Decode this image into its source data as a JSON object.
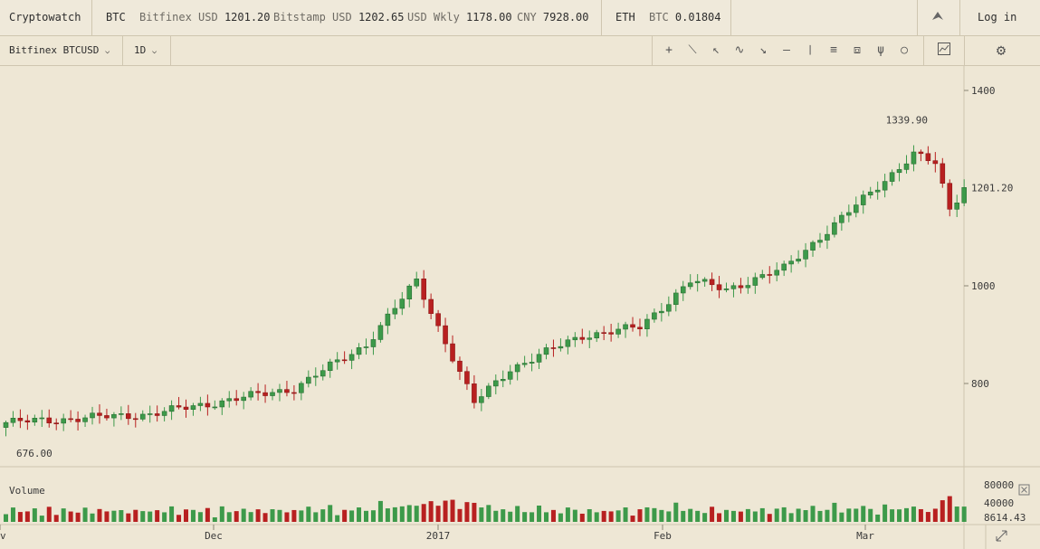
{
  "app": {
    "title": "Cryptowatch",
    "login": "Log in"
  },
  "ticker": {
    "btc_label": "BTC",
    "btc_items": [
      {
        "name": "Bitfinex USD",
        "value": "1201.20"
      },
      {
        "name": "Bitstamp USD",
        "value": "1202.65"
      },
      {
        "name": "USD Wkly",
        "value": "1178.00"
      },
      {
        "name": "CNY",
        "value": "7928.00"
      }
    ],
    "eth_label": "ETH",
    "eth_items": [
      {
        "name": "BTC",
        "value": "0.01804"
      }
    ]
  },
  "toolbar": {
    "market": "Bitfinex BTCUSD",
    "period": "1D",
    "tools": [
      "crosshair-tool",
      "line-tool",
      "ray-tool",
      "curve-tool",
      "arrow-tool",
      "horizontal-line-tool",
      "vertical-line-tool",
      "fib-retracement-tool",
      "fan-tool",
      "pitchfork-tool",
      "circle-tool"
    ],
    "indicator_icon": "chart-indicator-icon",
    "settings_icon": "gear-icon"
  },
  "colors": {
    "up": "#3d9a4a",
    "down": "#b82020",
    "background": "#eee7d5",
    "grid": "#dcd3bd"
  },
  "price_labels": {
    "last": "1201.20",
    "high": "1339.90",
    "low": "676.00"
  },
  "volume": {
    "title": "Volume",
    "last": "8614.43",
    "ticks": [
      "80000",
      "40000"
    ]
  },
  "chart_data": {
    "type": "candlestick",
    "market": "Bitfinex BTCUSD",
    "interval": "1D",
    "y_ticks": [
      1400,
      1000,
      800
    ],
    "last_price": 1201.2,
    "high_label": 1339.9,
    "low_label": 676.0,
    "x_ticks": [
      "Dec",
      "2017",
      "Feb",
      "Mar"
    ],
    "x_ticks_partial_left": "v",
    "close_points": [
      {
        "day_index": 0,
        "close": 720
      },
      {
        "day_index": 20,
        "close": 737
      },
      {
        "day_index": 40,
        "close": 790
      },
      {
        "day_index": 50,
        "close": 880
      },
      {
        "day_index": 57,
        "close": 1010
      },
      {
        "day_index": 65,
        "close": 760
      },
      {
        "day_index": 70,
        "close": 830
      },
      {
        "day_index": 80,
        "close": 898
      },
      {
        "day_index": 88,
        "close": 915
      },
      {
        "day_index": 95,
        "close": 1010
      },
      {
        "day_index": 100,
        "close": 993
      },
      {
        "day_index": 108,
        "close": 1035
      },
      {
        "day_index": 113,
        "close": 1100
      },
      {
        "day_index": 120,
        "close": 1190
      },
      {
        "day_index": 126,
        "close": 1270
      },
      {
        "day_index": 129,
        "close": 1250
      },
      {
        "day_index": 131,
        "close": 1155
      },
      {
        "day_index": 133,
        "close": 1201.2
      }
    ],
    "volume_max_visible": 96000
  }
}
